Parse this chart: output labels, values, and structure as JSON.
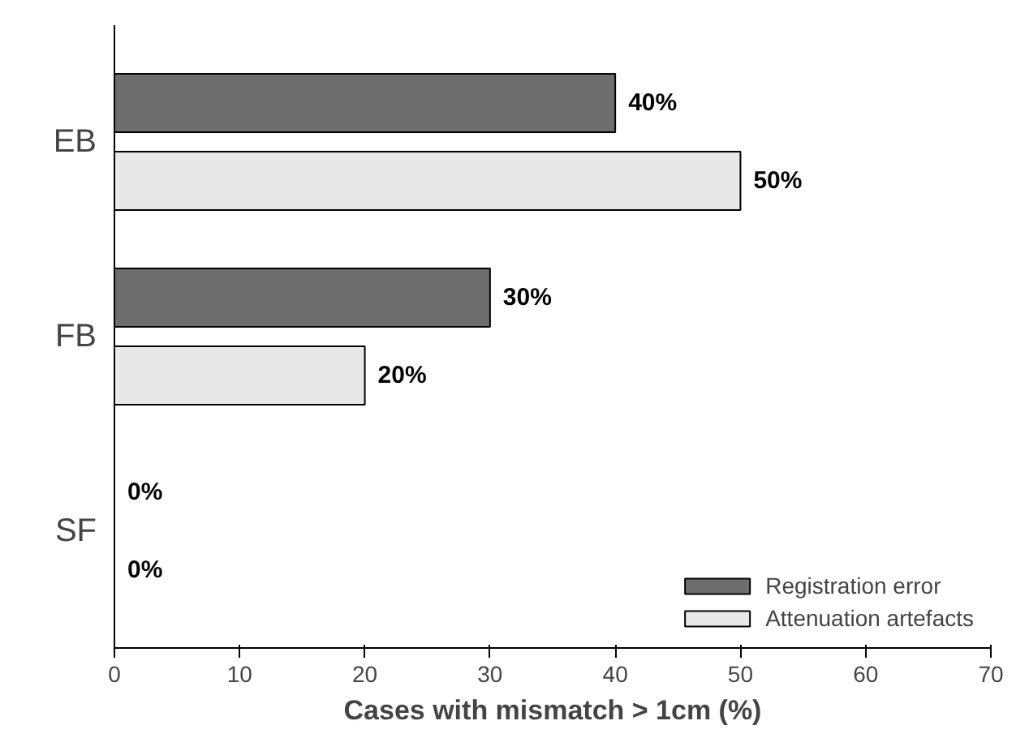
{
  "chart_data": {
    "type": "bar",
    "orientation": "horizontal",
    "xlabel": "Cases with mismatch > 1cm (%)",
    "categories": [
      "EB",
      "FB",
      "SF"
    ],
    "series": [
      {
        "name": "Registration error",
        "color": "#6e6e6e",
        "values": [
          40,
          30,
          0
        ],
        "value_labels": [
          "40%",
          "30%",
          "0%"
        ]
      },
      {
        "name": "Attenuation artefacts",
        "color": "#e8e8e8",
        "values": [
          50,
          20,
          0
        ],
        "value_labels": [
          "50%",
          "20%",
          "0%"
        ]
      }
    ],
    "xlim": [
      0,
      70
    ],
    "xticks": [
      0,
      10,
      20,
      30,
      40,
      50,
      60,
      70
    ],
    "grid": false,
    "legend": "bottom right"
  }
}
